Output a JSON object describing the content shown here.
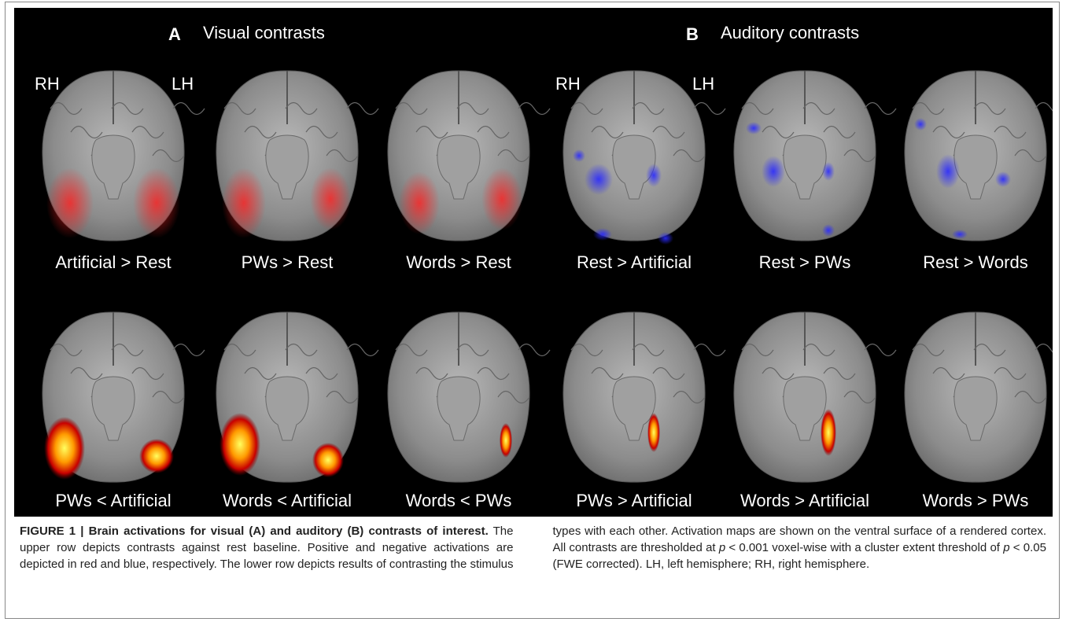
{
  "figure": {
    "panels": [
      {
        "letter": "A",
        "title": "Visual contrasts",
        "rh": "RH",
        "lh": "LH",
        "images": [
          {
            "label": "Artificial > Rest"
          },
          {
            "label": "PWs > Rest"
          },
          {
            "label": "Words > Rest"
          },
          {
            "label": "PWs < Artificial"
          },
          {
            "label": "Words < Artificial"
          },
          {
            "label": "Words < PWs"
          }
        ]
      },
      {
        "letter": "B",
        "title": "Auditory contrasts",
        "rh": "RH",
        "lh": "LH",
        "images": [
          {
            "label": "Rest > Artificial"
          },
          {
            "label": "Rest > PWs"
          },
          {
            "label": "Rest > Words"
          },
          {
            "label": "PWs > Artificial"
          },
          {
            "label": "Words > Artificial"
          },
          {
            "label": "Words > PWs"
          }
        ]
      }
    ],
    "caption": {
      "label": "FIGURE 1 |",
      "title": "Brain activations for visual (A) and auditory (B) contrasts of interest.",
      "parts": [
        "The upper row depicts contrasts against rest baseline. Positive and negative activations are depicted in red and blue, respectively. The lower row depicts results of contrasting the stimulus types with each other. Activation maps are shown on the ventral surface of a rendered cortex. All contrasts are thresholded at ",
        "p",
        " < 0.001 voxel-wise with a cluster extent threshold of ",
        "p",
        " < 0.05 (FWE corrected). LH, left hemisphere; RH, right hemisphere."
      ]
    }
  }
}
